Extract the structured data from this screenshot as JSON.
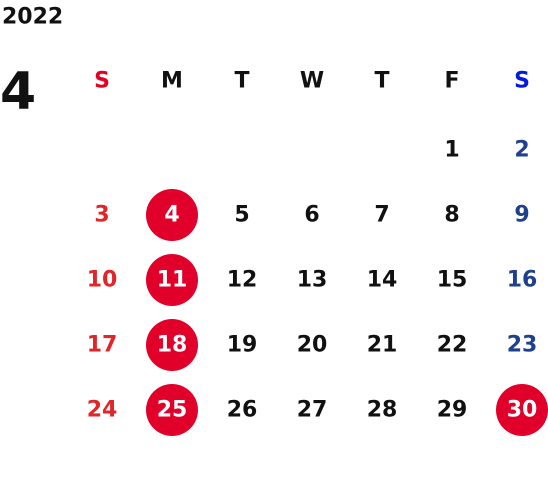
{
  "year": "2022",
  "month": "4",
  "weekdays": [
    "S",
    "M",
    "T",
    "W",
    "T",
    "F",
    "S"
  ],
  "weeks": [
    [
      null,
      null,
      null,
      null,
      null,
      {
        "day": "1"
      },
      {
        "day": "2"
      }
    ],
    [
      {
        "day": "3"
      },
      {
        "day": "4",
        "marked": true
      },
      {
        "day": "5"
      },
      {
        "day": "6"
      },
      {
        "day": "7"
      },
      {
        "day": "8"
      },
      {
        "day": "9"
      }
    ],
    [
      {
        "day": "10"
      },
      {
        "day": "11",
        "marked": true
      },
      {
        "day": "12"
      },
      {
        "day": "13"
      },
      {
        "day": "14"
      },
      {
        "day": "15"
      },
      {
        "day": "16"
      }
    ],
    [
      {
        "day": "17"
      },
      {
        "day": "18",
        "marked": true
      },
      {
        "day": "19"
      },
      {
        "day": "20"
      },
      {
        "day": "21"
      },
      {
        "day": "22"
      },
      {
        "day": "23"
      }
    ],
    [
      {
        "day": "24"
      },
      {
        "day": "25",
        "marked": true
      },
      {
        "day": "26"
      },
      {
        "day": "27"
      },
      {
        "day": "28"
      },
      {
        "day": "29"
      },
      {
        "day": "30",
        "marked": true
      }
    ]
  ]
}
